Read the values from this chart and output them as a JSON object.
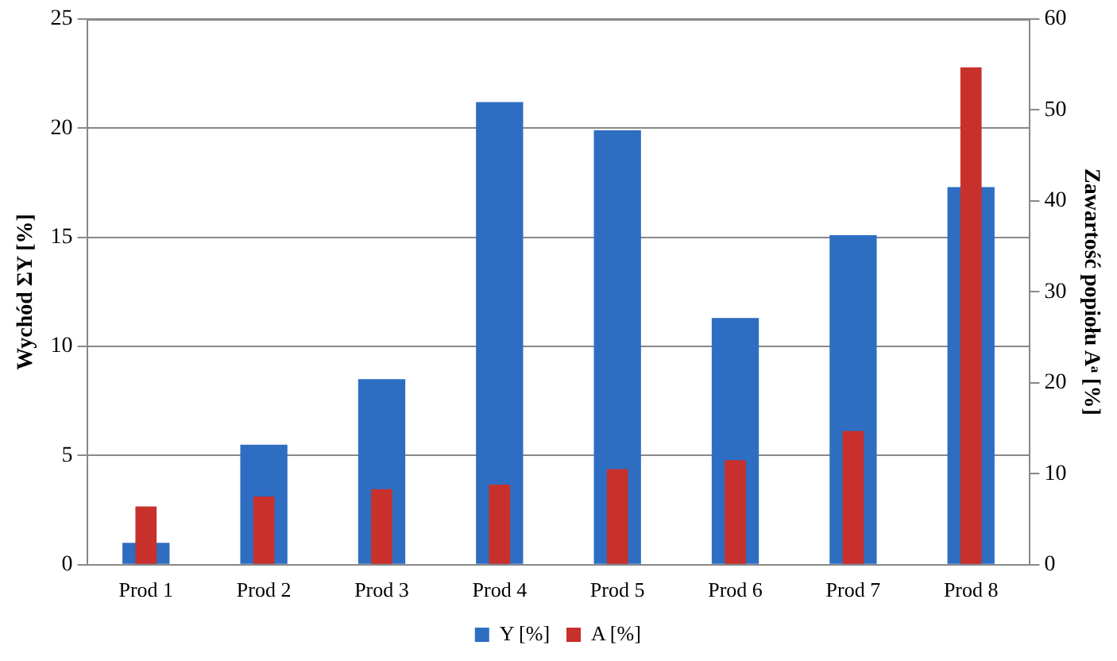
{
  "chart_data": {
    "type": "bar",
    "ylabel": "Wychód ΣY [%]",
    "y2label": "Zawartość popiołu Aᵃ [%]",
    "categories": [
      "Prod 1",
      "Prod 2",
      "Prod 3",
      "Prod 4",
      "Prod 5",
      "Prod 6",
      "Prod 7",
      "Prod 8"
    ],
    "series": [
      {
        "name": "Y [%]",
        "color": "#2e6ec2",
        "values": [
          1.0,
          5.5,
          8.5,
          21.2,
          19.9,
          11.3,
          15.1,
          17.3
        ]
      },
      {
        "name": "A [%]",
        "color": "#c8302c",
        "axis": "y2",
        "values": [
          6.4,
          7.5,
          8.3,
          8.8,
          10.5,
          11.5,
          14.7,
          54.7
        ]
      }
    ],
    "ylim": [
      0,
      25
    ],
    "yticks": [
      0,
      5,
      10,
      15,
      20,
      25
    ],
    "y2lim": [
      0,
      60
    ],
    "y2ticks": [
      0,
      10,
      20,
      30,
      40,
      50,
      60
    ],
    "grid": "y",
    "legend": "bottom"
  }
}
